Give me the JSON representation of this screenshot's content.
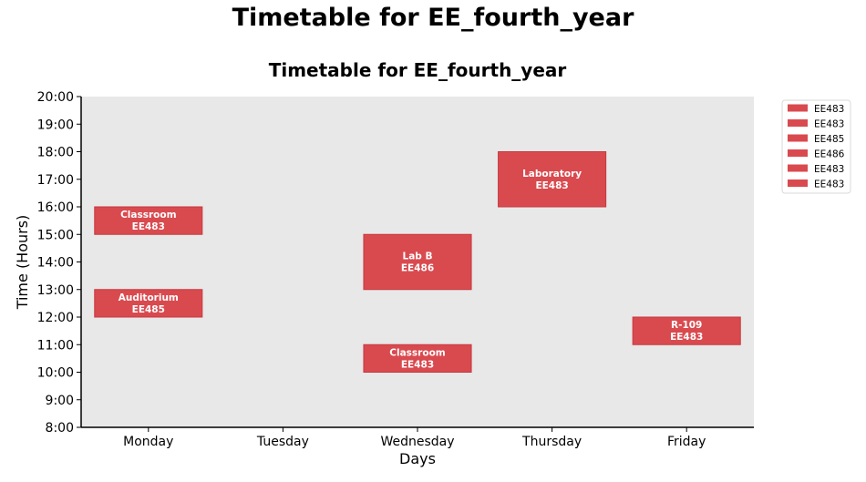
{
  "suptitle": "Timetable for EE_fourth_year",
  "chart_data": {
    "type": "bar",
    "title": "Timetable for EE_fourth_year",
    "xlabel": "Days",
    "ylabel": "Time (Hours)",
    "categories": [
      "Monday",
      "Tuesday",
      "Wednesday",
      "Thursday",
      "Friday"
    ],
    "ylim": [
      8,
      20
    ],
    "yticks": [
      "8:00",
      "9:00",
      "10:00",
      "11:00",
      "12:00",
      "13:00",
      "14:00",
      "15:00",
      "16:00",
      "17:00",
      "18:00",
      "19:00",
      "20:00"
    ],
    "bar_color": "#d94a4f",
    "background_color": "#e8e8e8",
    "legend_position": "upper-right-outside",
    "sessions": [
      {
        "course": "EE483",
        "room": "Classroom",
        "day": "Monday",
        "start": 15,
        "end": 16
      },
      {
        "course": "EE483",
        "room": "Laboratory",
        "day": "Thursday",
        "start": 16,
        "end": 18
      },
      {
        "course": "EE485",
        "room": "Auditorium",
        "day": "Monday",
        "start": 12,
        "end": 13
      },
      {
        "course": "EE486",
        "room": "Lab B",
        "day": "Wednesday",
        "start": 13,
        "end": 15
      },
      {
        "course": "EE483",
        "room": "Classroom",
        "day": "Wednesday",
        "start": 10,
        "end": 11
      },
      {
        "course": "EE483",
        "room": "R-109",
        "day": "Friday",
        "start": 11,
        "end": 12
      }
    ]
  }
}
